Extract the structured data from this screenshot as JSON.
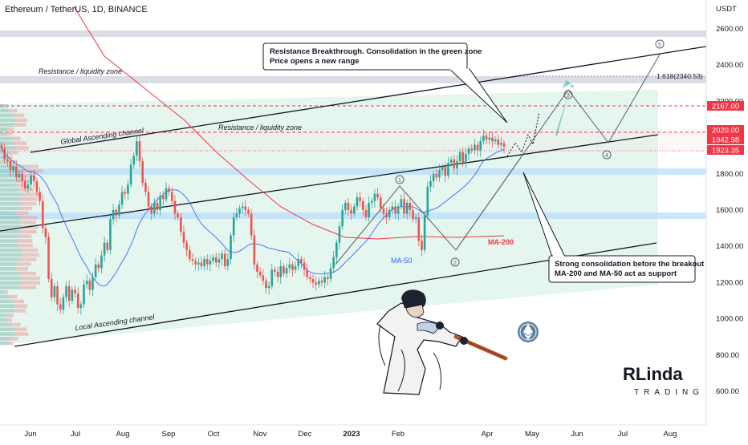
{
  "header": {
    "title": "Ethereum / TetherUS, 1D, BINANCE",
    "currency": "USDT"
  },
  "annotations": {
    "top_callout": [
      "Resistance Breakthrough. Consolidation in the green zone",
      "Price opens a new range"
    ],
    "bottom_callout": [
      "Strong consolidation before the breakout",
      "MA-200 and MA-50 act as support"
    ],
    "resistance_zone_upper": "Resistance / liquidity zone",
    "resistance_zone_mid": "Resistance / liquidity zone",
    "global_channel": "Global Ascending channel",
    "local_channel": "Local Ascending channel",
    "ma200": "MA-200",
    "ma50": "MA-50",
    "fib": "1.618(2340.53)",
    "wave_labels": [
      "1",
      "2",
      "3",
      "4",
      "5"
    ]
  },
  "logo": {
    "text_top": "RLinda",
    "text_bottom": "TRADING"
  },
  "colors": {
    "bull": "#26a69a",
    "bear": "#ef5350",
    "ma200": "#f23645",
    "ma50": "#2962ff",
    "zone_green": "#e0f4ec",
    "zone_gray": "#d1d4dc",
    "zone_blue": "#bbdefb",
    "badge_red": "#f23645",
    "eth_icon": "#5c7fa3"
  },
  "chart_data": {
    "type": "candlestick",
    "title": "Ethereum / TetherUS, 1D, BINANCE",
    "ylabel": "USDT",
    "ylim": [
      480,
      2720
    ],
    "y_ticks": [
      600,
      800,
      1000,
      1200,
      1400,
      1600,
      1800,
      2000,
      2200,
      2400,
      2600
    ],
    "x_ticks": [
      "Jun",
      "Jul",
      "Aug",
      "Sep",
      "Oct",
      "Nov",
      "Dec",
      "2023",
      "Feb",
      "Apr",
      "May",
      "Jun",
      "Jul",
      "Aug"
    ],
    "price_labels": [
      {
        "value": 2167.0,
        "label": "2167.00"
      },
      {
        "value": 2020.0,
        "label": "2020.00"
      },
      {
        "value": 1942.98,
        "label": "1942.98"
      },
      {
        "value": 1923.35,
        "label": "1923.35"
      }
    ],
    "fib_level": 2340.53,
    "zones": [
      {
        "name": "top gray",
        "from": 2570,
        "to": 2600
      },
      {
        "name": "resistance / liquidity",
        "from": 2300,
        "to": 2340
      },
      {
        "name": "blue 1800",
        "from": 1795,
        "to": 1825
      },
      {
        "name": "blue 1570",
        "from": 1560,
        "to": 1590
      }
    ],
    "series": [
      {
        "name": "ETHUSDT",
        "kind": "candles"
      },
      {
        "name": "MA-200",
        "kind": "line"
      },
      {
        "name": "MA-50",
        "kind": "line"
      }
    ],
    "closes": [
      1940,
      1880,
      1870,
      1820,
      1840,
      1780,
      1800,
      1760,
      1720,
      1740,
      1790,
      1760,
      1700,
      1650,
      1500,
      1450,
      1220,
      1120,
      1180,
      1080,
      1050,
      1120,
      1180,
      1100,
      1160,
      1140,
      1060,
      1080,
      1190,
      1210,
      1160,
      1230,
      1300,
      1280,
      1350,
      1420,
      1380,
      1550,
      1600,
      1570,
      1630,
      1700,
      1690,
      1740,
      1850,
      1900,
      1980,
      1870,
      1750,
      1700,
      1620,
      1580,
      1640,
      1600,
      1680,
      1660,
      1720,
      1700,
      1650,
      1580,
      1560,
      1480,
      1420,
      1380,
      1330,
      1320,
      1300,
      1310,
      1290,
      1330,
      1300,
      1320,
      1340,
      1310,
      1330,
      1360,
      1290,
      1330,
      1460,
      1560,
      1580,
      1610,
      1620,
      1600,
      1580,
      1460,
      1300,
      1260,
      1240,
      1210,
      1170,
      1180,
      1270,
      1260,
      1230,
      1290,
      1250,
      1280,
      1300,
      1270,
      1290,
      1330,
      1310,
      1270,
      1230,
      1220,
      1200,
      1190,
      1210,
      1200,
      1230,
      1220,
      1280,
      1340,
      1420,
      1510,
      1600,
      1640,
      1600,
      1580,
      1620,
      1670,
      1650,
      1600,
      1560,
      1640,
      1650,
      1690,
      1670,
      1610,
      1580,
      1560,
      1600,
      1620,
      1580,
      1620,
      1660,
      1580,
      1640,
      1600,
      1550,
      1560,
      1430,
      1380,
      1570,
      1730,
      1760,
      1800,
      1780,
      1820,
      1840,
      1790,
      1860,
      1880,
      1830,
      1870,
      1920,
      1860,
      1910,
      1940,
      1930,
      1960,
      1930,
      1980,
      2010,
      1990,
      2000,
      1980,
      1990,
      1960,
      1970,
      1950
    ]
  }
}
